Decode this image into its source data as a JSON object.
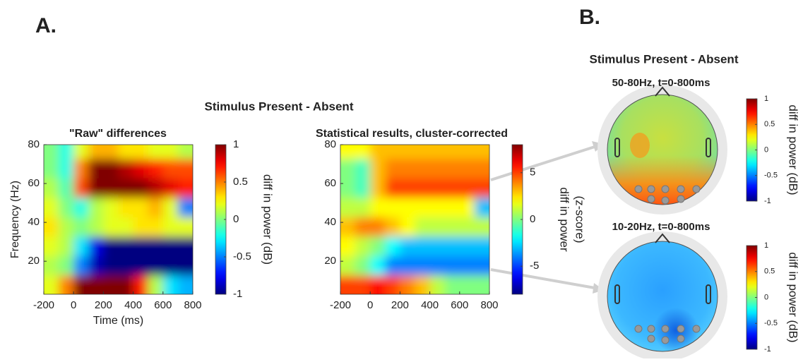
{
  "panel_labels": [
    "A.",
    "B."
  ],
  "panel_titles": [
    "Stimulus Present - Absent",
    "Stimulus Present - Absent"
  ],
  "chart_data": [
    {
      "type": "heatmap",
      "title": "\"Raw\" differences",
      "x_label": "Time (ms)",
      "y_label": "Frequency (Hz)",
      "x": [
        -150,
        -50,
        50,
        150,
        250,
        350,
        450,
        550,
        650,
        750
      ],
      "y": [
        8,
        18,
        28,
        38,
        48,
        58,
        68,
        78
      ],
      "values": [
        [
          0.2,
          0.5,
          1,
          1,
          1,
          1,
          0.7,
          0.1,
          -0.3,
          -0.4
        ],
        [
          0.1,
          0,
          -0.5,
          -0.9,
          -1,
          -1,
          -1,
          -1,
          -1,
          -1
        ],
        [
          0.2,
          0.1,
          -0.3,
          -0.8,
          -1,
          -1,
          -1,
          -1,
          -1,
          -1
        ],
        [
          0.3,
          0.1,
          0,
          0.1,
          0.2,
          0.2,
          0.3,
          0.3,
          0.2,
          0.2
        ],
        [
          0.2,
          0,
          -0.2,
          0.1,
          0.2,
          0.3,
          0.3,
          0.4,
          0.2,
          -0.5
        ],
        [
          0.1,
          -0.1,
          0.6,
          1,
          1,
          1,
          1,
          0.9,
          0.8,
          0.7
        ],
        [
          0,
          -0.2,
          0.5,
          1,
          1,
          0.9,
          0.8,
          0.7,
          0.6,
          0.6
        ],
        [
          0,
          -0.2,
          0.2,
          0.4,
          0.4,
          0.3,
          0.3,
          0.2,
          0.2,
          0.1
        ]
      ],
      "xlim": [
        -200,
        800
      ],
      "xticks": [
        -200,
        0,
        200,
        400,
        600,
        800
      ],
      "ylim": [
        3,
        80
      ],
      "yticks": [
        20,
        40,
        60,
        80
      ],
      "clim": [
        -1,
        1
      ],
      "cticks": [
        -1,
        -0.5,
        0,
        0.5,
        1
      ],
      "colorbar_label": [
        "diff in power (dB)"
      ],
      "colormap": "jet"
    },
    {
      "type": "heatmap",
      "title": "Statistical results, cluster-corrected",
      "x": [
        -150,
        -50,
        50,
        150,
        250,
        350,
        450,
        550,
        650,
        750
      ],
      "y": [
        8,
        18,
        28,
        38,
        48,
        58,
        68,
        78
      ],
      "values": [
        [
          5,
          5,
          6,
          5,
          4,
          3,
          1,
          0,
          0,
          0
        ],
        [
          1,
          0,
          -2,
          -4,
          -4,
          -4,
          -4,
          -4,
          -4,
          -4
        ],
        [
          2,
          1,
          0,
          -2,
          -3,
          -3,
          -3,
          -3,
          -3,
          -3
        ],
        [
          3,
          4,
          4,
          3,
          2,
          1,
          1,
          1,
          1,
          1
        ],
        [
          1,
          1,
          2,
          2,
          2,
          2,
          2,
          2,
          2,
          -3
        ],
        [
          0,
          -1,
          3,
          5,
          5,
          5,
          5,
          5,
          5,
          5
        ],
        [
          0,
          -1,
          3,
          4,
          4,
          4,
          4,
          4,
          4,
          4
        ],
        [
          2,
          2,
          3,
          3,
          3,
          3,
          3,
          3,
          3,
          3
        ]
      ],
      "xlim": [
        -200,
        800
      ],
      "xticks": [
        -200,
        0,
        200,
        400,
        600,
        800
      ],
      "ylim": [
        3,
        80
      ],
      "yticks": [
        20,
        40,
        60,
        80
      ],
      "clim": [
        -8,
        8
      ],
      "cticks": [
        -5,
        0,
        5
      ],
      "colorbar_label": [
        "diff in power",
        "(z-score)"
      ],
      "colormap": "jet"
    },
    {
      "type": "topoplot",
      "title": "50-80Hz, t=0-800ms",
      "clim": [
        -1,
        1
      ],
      "cticks": [
        -1,
        -0.5,
        0,
        0.5,
        1
      ],
      "colorbar_label": [
        "diff in power (dB)"
      ],
      "colormap": "jet"
    },
    {
      "type": "topoplot",
      "title": "10-20Hz, t=0-800ms",
      "clim": [
        -1,
        1
      ],
      "cticks": [
        -1,
        -0.5,
        0,
        0.5,
        1
      ],
      "colorbar_label": [
        "diff in power (dB)"
      ],
      "colormap": "jet"
    }
  ]
}
